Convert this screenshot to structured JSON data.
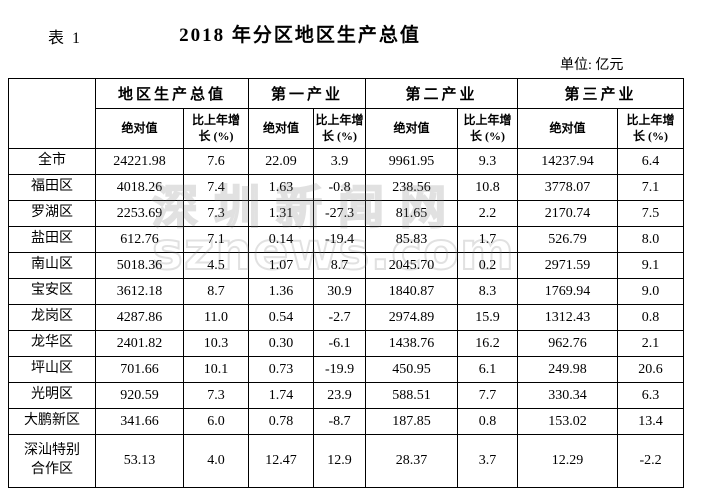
{
  "header": {
    "table_label": "表 1",
    "title": "2018 年分区地区生产总值",
    "unit_label": "单位: 亿元"
  },
  "watermark": {
    "line1": "深圳新闻网",
    "line2": "sznews.com"
  },
  "table": {
    "groups": [
      "地区生产总值",
      "第一产业",
      "第二产业",
      "第三产业"
    ],
    "col_abs": "绝对值",
    "col_growth": "比上年增\n长 (%)",
    "rows": [
      {
        "region": "全市",
        "values": [
          "24221.98",
          "7.6",
          "22.09",
          "3.9",
          "9961.95",
          "9.3",
          "14237.94",
          "6.4"
        ]
      },
      {
        "region": "福田区",
        "values": [
          "4018.26",
          "7.4",
          "1.63",
          "-0.8",
          "238.56",
          "10.8",
          "3778.07",
          "7.1"
        ]
      },
      {
        "region": "罗湖区",
        "values": [
          "2253.69",
          "7.3",
          "1.31",
          "-27.3",
          "81.65",
          "2.2",
          "2170.74",
          "7.5"
        ]
      },
      {
        "region": "盐田区",
        "values": [
          "612.76",
          "7.1",
          "0.14",
          "-19.4",
          "85.83",
          "1.7",
          "526.79",
          "8.0"
        ]
      },
      {
        "region": "南山区",
        "values": [
          "5018.36",
          "4.5",
          "1.07",
          "8.7",
          "2045.70",
          "0.2",
          "2971.59",
          "9.1"
        ]
      },
      {
        "region": "宝安区",
        "values": [
          "3612.18",
          "8.7",
          "1.36",
          "30.9",
          "1840.87",
          "8.3",
          "1769.94",
          "9.0"
        ]
      },
      {
        "region": "龙岗区",
        "values": [
          "4287.86",
          "11.0",
          "0.54",
          "-2.7",
          "2974.89",
          "15.9",
          "1312.43",
          "0.8"
        ]
      },
      {
        "region": "龙华区",
        "values": [
          "2401.82",
          "10.3",
          "0.30",
          "-6.1",
          "1438.76",
          "16.2",
          "962.76",
          "2.1"
        ]
      },
      {
        "region": "坪山区",
        "values": [
          "701.66",
          "10.1",
          "0.73",
          "-19.9",
          "450.95",
          "6.1",
          "249.98",
          "20.6"
        ]
      },
      {
        "region": "光明区",
        "values": [
          "920.59",
          "7.3",
          "1.74",
          "23.9",
          "588.51",
          "7.7",
          "330.34",
          "6.3"
        ]
      },
      {
        "region": "大鹏新区",
        "values": [
          "341.66",
          "6.0",
          "0.78",
          "-8.7",
          "187.85",
          "0.8",
          "153.02",
          "13.4"
        ]
      },
      {
        "region": "深汕特别合作区",
        "values": [
          "53.13",
          "4.0",
          "12.47",
          "12.9",
          "28.37",
          "3.7",
          "12.29",
          "-2.2"
        ]
      }
    ]
  }
}
